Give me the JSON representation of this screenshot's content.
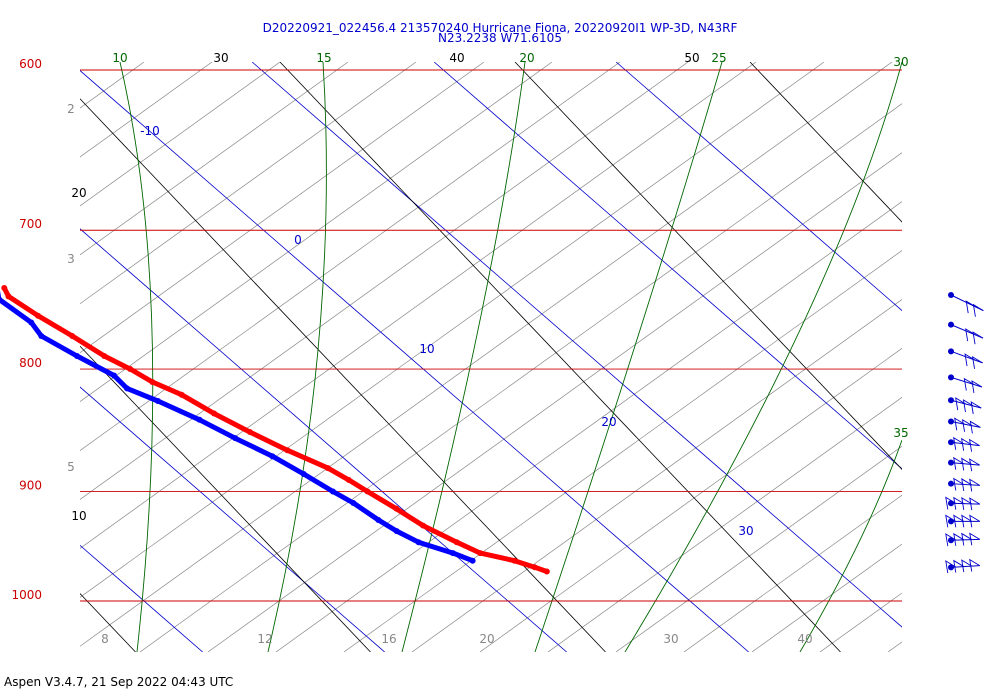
{
  "header": {
    "title_line1": "D20220921_022456.4 213570240 Hurricane Fiona, 20220920I1 WP-3D, N43RF",
    "title_line2": "N23.2238 W71.6105"
  },
  "footer": {
    "text": "Aspen V3.4.7, 21 Sep 2022  04:43 UTC"
  },
  "chart_data": {
    "type": "line",
    "subtype": "skew-T log-P diagram",
    "pressure_levels": [
      "600",
      "700",
      "800",
      "900",
      "1000"
    ],
    "pressure_range_hpa": [
      1050,
      600
    ],
    "temperature_axis_labels": [
      "8",
      "12",
      "16",
      "20",
      "30",
      "40"
    ],
    "isotherm_labels": [
      {
        "text": "-10"
      },
      {
        "text": "0"
      },
      {
        "text": "10"
      },
      {
        "text": "20"
      },
      {
        "text": "30"
      }
    ],
    "dry_adiabat_labels": [
      "20",
      "30",
      "40",
      "50",
      "20",
      "10"
    ],
    "moist_adiabat_labels": [
      "10",
      "15",
      "20",
      "25",
      "30",
      "35"
    ],
    "mixing_ratio_labels": [
      "2",
      "3",
      "5"
    ],
    "colors": {
      "isobar": "#cc0000",
      "isotherm": "#0000cc",
      "dry_adiabat": "#000000",
      "moist_adiabat": "#006600",
      "mixing_ratio": "#888888",
      "temperature_trace": "#ff0000",
      "dewpoint_trace": "#0000ff",
      "wind_barb": "#0000cc"
    },
    "series": [
      {
        "key": "temperature",
        "points": [
          {
            "p": 740,
            "t": 12.1
          },
          {
            "p": 746,
            "t": 11.8
          },
          {
            "p": 760,
            "t": 12.2
          },
          {
            "p": 775,
            "t": 12.8
          },
          {
            "p": 790,
            "t": 13.3
          },
          {
            "p": 800,
            "t": 13.9
          },
          {
            "p": 810,
            "t": 14.3
          },
          {
            "p": 820,
            "t": 15.1
          },
          {
            "p": 835,
            "t": 15.7
          },
          {
            "p": 850,
            "t": 16.5
          },
          {
            "p": 865,
            "t": 17.4
          },
          {
            "p": 880,
            "t": 18.5
          },
          {
            "p": 890,
            "t": 18.9
          },
          {
            "p": 900,
            "t": 19.2
          },
          {
            "p": 915,
            "t": 19.7
          },
          {
            "p": 930,
            "t": 20.1
          },
          {
            "p": 945,
            "t": 20.9
          },
          {
            "p": 955,
            "t": 21.5
          },
          {
            "p": 962,
            "t": 22.9
          },
          {
            "p": 968,
            "t": 23.6
          },
          {
            "p": 972,
            "t": 24.0
          }
        ]
      },
      {
        "key": "dewpoint",
        "points": [
          {
            "p": 740,
            "t": 11.7
          },
          {
            "p": 748,
            "t": 11.1
          },
          {
            "p": 765,
            "t": 11.4
          },
          {
            "p": 775,
            "t": 11.1
          },
          {
            "p": 790,
            "t": 11.8
          },
          {
            "p": 805,
            "t": 12.6
          },
          {
            "p": 815,
            "t": 12.5
          },
          {
            "p": 825,
            "t": 13.4
          },
          {
            "p": 840,
            "t": 14.5
          },
          {
            "p": 855,
            "t": 15.3
          },
          {
            "p": 870,
            "t": 16.2
          },
          {
            "p": 885,
            "t": 16.8
          },
          {
            "p": 900,
            "t": 17.3
          },
          {
            "p": 910,
            "t": 17.7
          },
          {
            "p": 925,
            "t": 18.0
          },
          {
            "p": 935,
            "t": 18.3
          },
          {
            "p": 945,
            "t": 18.8
          },
          {
            "p": 955,
            "t": 20.0
          },
          {
            "p": 962,
            "t": 20.6
          }
        ]
      }
    ],
    "wind_barbs": [
      {
        "p": 745
      },
      {
        "p": 768
      },
      {
        "p": 788
      },
      {
        "p": 808
      },
      {
        "p": 826
      },
      {
        "p": 843
      },
      {
        "p": 860
      },
      {
        "p": 877
      },
      {
        "p": 895
      },
      {
        "p": 912
      },
      {
        "p": 928
      },
      {
        "p": 945
      },
      {
        "p": 970
      }
    ],
    "grid": true
  }
}
